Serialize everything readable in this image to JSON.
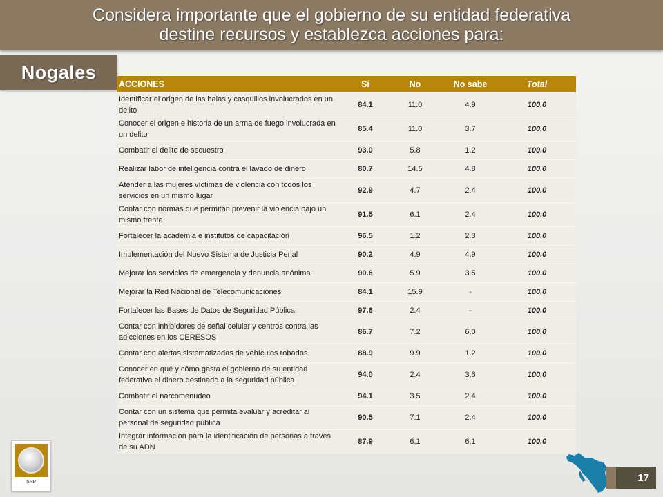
{
  "header": {
    "title_line1": "Considera importante que el gobierno de su entidad federativa",
    "title_line2": "destine recursos y establezca acciones para:"
  },
  "city": "Nogales",
  "table": {
    "headers": {
      "acciones": "ACCIONES",
      "si": "Sí",
      "no": "No",
      "no_sabe": "No sabe",
      "total": "Total"
    },
    "rows": [
      {
        "accion": "Identificar el origen de las balas y casquillos involucrados en un delito",
        "si": "84.1",
        "no": "11.0",
        "no_sabe": "4.9",
        "total": "100.0"
      },
      {
        "accion": "Conocer el origen e historia de un arma de fuego involucrada en un delito",
        "si": "85.4",
        "no": "11.0",
        "no_sabe": "3.7",
        "total": "100.0"
      },
      {
        "accion": "Combatir el delito de secuestro",
        "si": "93.0",
        "no": "5.8",
        "no_sabe": "1.2",
        "total": "100.0"
      },
      {
        "accion": "Realizar labor de inteligencia contra el lavado de dinero",
        "si": "80.7",
        "no": "14.5",
        "no_sabe": "4.8",
        "total": "100.0"
      },
      {
        "accion": "Atender a las mujeres víctimas de violencia con todos los servicios en un mismo lugar",
        "si": "92.9",
        "no": "4.7",
        "no_sabe": "2.4",
        "total": "100.0"
      },
      {
        "accion": "Contar con normas que permitan prevenir la violencia bajo un mismo frente",
        "si": "91.5",
        "no": "6.1",
        "no_sabe": "2.4",
        "total": "100.0"
      },
      {
        "accion": "Fortalecer  la academia e institutos de capacitación",
        "si": "96.5",
        "no": "1.2",
        "no_sabe": "2.3",
        "total": "100.0"
      },
      {
        "accion": "Implementación del Nuevo Sistema de Justicia Penal",
        "si": "90.2",
        "no": "4.9",
        "no_sabe": "4.9",
        "total": "100.0"
      },
      {
        "accion": "Mejorar los servicios de emergencia y denuncia  anónima",
        "si": "90.6",
        "no": "5.9",
        "no_sabe": "3.5",
        "total": "100.0"
      },
      {
        "accion": "Mejorar la Red Nacional de Telecomunicaciones",
        "si": "84.1",
        "no": "15.9",
        "no_sabe": "-",
        "total": "100.0"
      },
      {
        "accion": "Fortalecer las Bases de Datos de Seguridad Pública",
        "si": "97.6",
        "no": "2.4",
        "no_sabe": "-",
        "total": "100.0"
      },
      {
        "accion": "Contar con inhibidores de señal celular y centros contra las adicciones en los CERESOS",
        "si": "86.7",
        "no": "7.2",
        "no_sabe": "6.0",
        "total": "100.0"
      },
      {
        "accion": "Contar con alertas sistematizadas de vehículos robados",
        "si": "88.9",
        "no": "9.9",
        "no_sabe": "1.2",
        "total": "100.0"
      },
      {
        "accion": "Conocer en qué y cómo gasta el gobierno de su entidad federativa el dinero destinado a la seguridad pública",
        "si": "94.0",
        "no": "2.4",
        "no_sabe": "3.6",
        "total": "100.0"
      },
      {
        "accion": "Combatir el narcomenudeo",
        "si": "94.1",
        "no": "3.5",
        "no_sabe": "2.4",
        "total": "100.0"
      },
      {
        "accion": "Contar con un sistema que permita evaluar y acreditar al personal de seguridad pública",
        "si": "90.5",
        "no": "7.1",
        "no_sabe": "2.4",
        "total": "100.0"
      },
      {
        "accion": "Integrar información para la identificación de personas a través de su ADN",
        "si": "87.9",
        "no": "6.1",
        "no_sabe": "6.1",
        "total": "100.0"
      }
    ]
  },
  "footer": {
    "logo_text": "SSP",
    "page_number": "17"
  },
  "colors": {
    "title_bar": "#8c7a63",
    "city_tab": "#7a6a55",
    "table_header": "#b8860b",
    "table_body": "#efede6",
    "map_fill": "#1b7fa8",
    "page_box": "#55503f"
  }
}
